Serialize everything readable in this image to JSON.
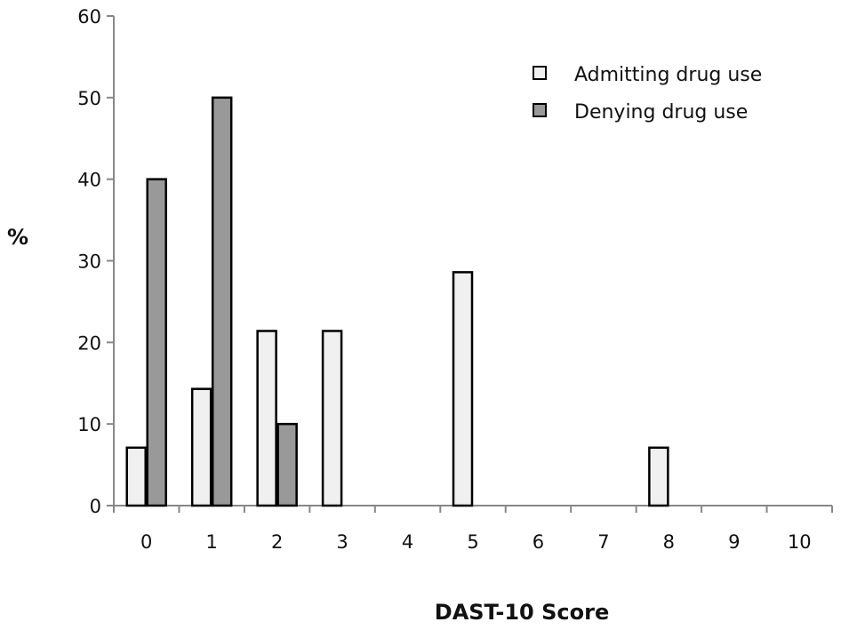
{
  "chart_data": {
    "type": "bar",
    "title": "",
    "xlabel": "DAST-10 Score",
    "ylabel": "%",
    "categories": [
      "0",
      "1",
      "2",
      "3",
      "4",
      "5",
      "6",
      "7",
      "8",
      "9",
      "10"
    ],
    "ylim": [
      0,
      60
    ],
    "yticks": [
      0,
      10,
      20,
      30,
      40,
      50,
      60
    ],
    "grid": false,
    "legend_position": "top-right",
    "series": [
      {
        "name": "Admitting drug use",
        "color": "#f0f0f0",
        "values": [
          7.1,
          14.3,
          21.4,
          21.4,
          0,
          28.6,
          0,
          0,
          7.1,
          0,
          0
        ]
      },
      {
        "name": "Denying drug use",
        "color": "#999999",
        "values": [
          40,
          50,
          10,
          0,
          0,
          0,
          0,
          0,
          0,
          0,
          0
        ]
      }
    ]
  }
}
